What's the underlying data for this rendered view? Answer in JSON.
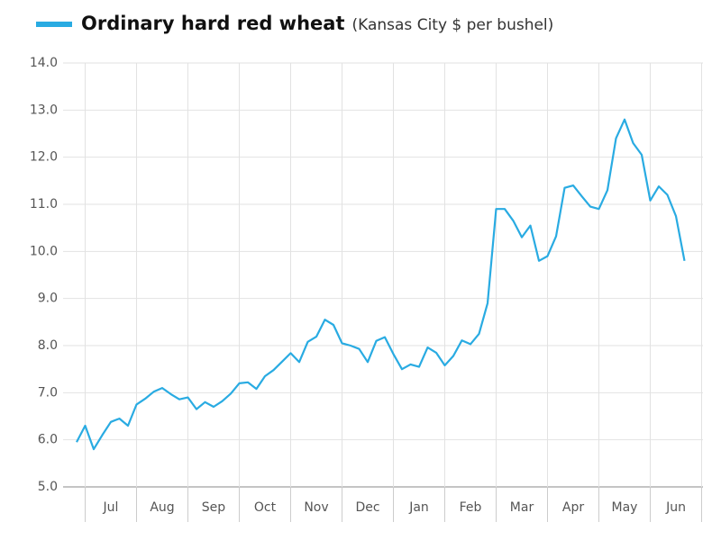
{
  "chart_data": {
    "type": "line",
    "subtitle": "(Kansas City $ per bushel)",
    "categories": [
      null,
      null,
      null,
      null,
      "Jul",
      null,
      null,
      null,
      null,
      null,
      "Aug",
      null,
      null,
      null,
      null,
      null,
      "Sep",
      null,
      null,
      null,
      null,
      null,
      "Oct",
      null,
      null,
      null,
      null,
      null,
      "Nov",
      null,
      null,
      null,
      null,
      null,
      "Dec",
      null,
      null,
      null,
      null,
      null,
      "Jan",
      null,
      null,
      null,
      null,
      null,
      "Feb",
      null,
      null,
      null,
      null,
      null,
      "Mar",
      null,
      null,
      null,
      null,
      null,
      "Apr",
      null,
      null,
      null,
      null,
      null,
      "May",
      null,
      null,
      null,
      null,
      null,
      "Jun",
      null
    ],
    "series": [
      {
        "name": "Ordinary hard red wheat",
        "color": "#29abe2",
        "values": [
          5.95,
          6.3,
          5.8,
          6.1,
          6.38,
          6.45,
          6.3,
          6.75,
          6.87,
          7.02,
          7.1,
          6.97,
          6.86,
          6.9,
          6.65,
          6.8,
          6.7,
          6.82,
          6.98,
          7.2,
          7.22,
          7.08,
          7.35,
          7.48,
          7.66,
          7.84,
          7.65,
          8.08,
          8.19,
          8.55,
          8.44,
          8.05,
          8.0,
          7.93,
          7.65,
          8.1,
          8.18,
          7.82,
          7.5,
          7.6,
          7.55,
          7.96,
          7.85,
          7.58,
          7.78,
          8.11,
          8.03,
          8.25,
          8.9,
          10.9,
          10.9,
          10.65,
          10.3,
          10.55,
          9.8,
          9.9,
          10.32,
          11.35,
          11.4,
          11.17,
          10.95,
          10.9,
          11.3,
          12.4,
          12.8,
          12.3,
          12.05,
          11.08,
          11.38,
          11.2,
          10.75,
          9.8
        ]
      }
    ],
    "ylim": [
      5,
      14
    ],
    "yticks": [
      {
        "value": 5,
        "label": "5.0"
      },
      {
        "value": 6,
        "label": "6.0"
      },
      {
        "value": 7,
        "label": "7.0"
      },
      {
        "value": 8,
        "label": "8.0"
      },
      {
        "value": 9,
        "label": "9.0"
      },
      {
        "value": 10,
        "label": "10.0"
      },
      {
        "value": 11,
        "label": "11.0"
      },
      {
        "value": 12,
        "label": "12.0"
      },
      {
        "value": 13,
        "label": "13.0"
      },
      {
        "value": 14,
        "label": "14.0"
      }
    ],
    "grid": true
  }
}
